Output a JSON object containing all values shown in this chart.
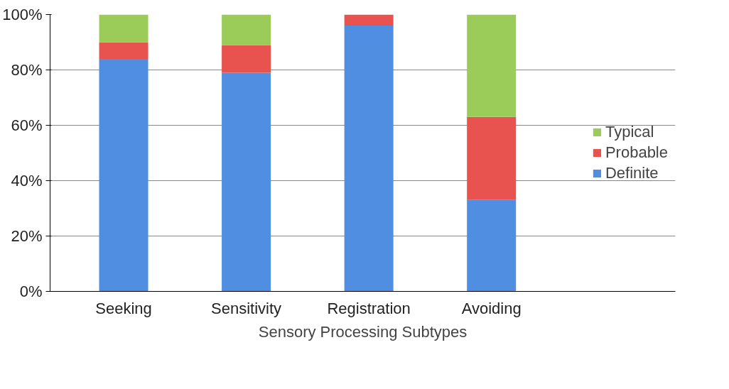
{
  "chart_data": {
    "type": "bar",
    "stacked": true,
    "xlabel": "Sensory Processing Subtypes",
    "categories": [
      "Seeking",
      "Sensitivity",
      "Registration",
      "Avoiding"
    ],
    "series": [
      {
        "name": "Definite",
        "color": "#4f8ee0",
        "values": [
          84,
          79,
          96,
          33
        ]
      },
      {
        "name": "Probable",
        "color": "#e8534f",
        "values": [
          6,
          10,
          4,
          30
        ]
      },
      {
        "name": "Typical",
        "color": "#9bcc5a",
        "values": [
          10,
          11,
          0,
          37
        ]
      }
    ],
    "ylim": [
      0,
      100
    ],
    "yticks": [
      {
        "value": 0,
        "label": "0%"
      },
      {
        "value": 20,
        "label": "20%"
      },
      {
        "value": 40,
        "label": "40%"
      },
      {
        "value": 60,
        "label": "60%"
      },
      {
        "value": 80,
        "label": "80%"
      },
      {
        "value": 100,
        "label": "100%"
      }
    ],
    "grid": "y",
    "legend": "right"
  }
}
